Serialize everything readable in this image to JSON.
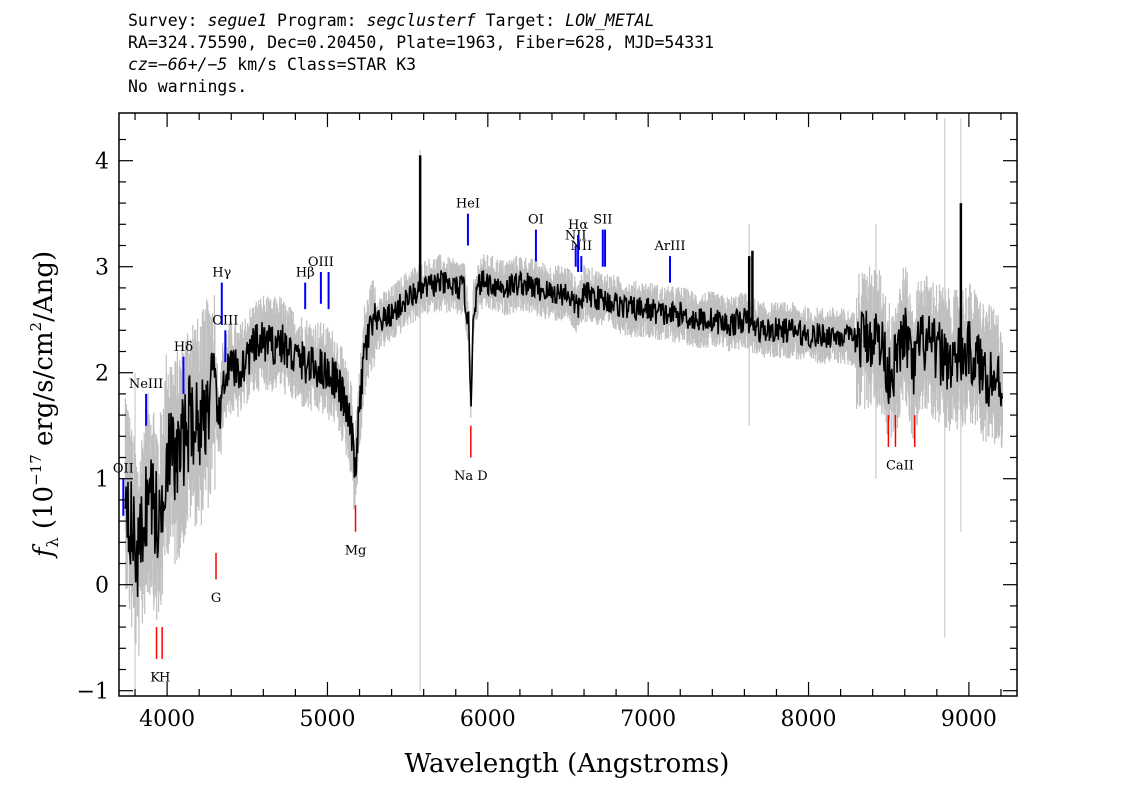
{
  "header": {
    "survey_label": "Survey:",
    "survey": "segue1",
    "program_label": "Program:",
    "program": "segclusterf",
    "target_label": "Target:",
    "target": "LOW_METAL",
    "line2": "RA=324.75590, Dec=0.20450, Plate=1963, Fiber=628, MJD=54331",
    "cz_label": "cz=",
    "cz_value": "−66+/−5",
    "cz_rest": " km/s Class=STAR K3",
    "line4": "No warnings."
  },
  "chart_data": {
    "type": "line",
    "xlabel": "Wavelength (Angstroms)",
    "ylabel_parts": {
      "pre": "f",
      "sub": "λ",
      "mid": " (10",
      "sup1": "−17",
      "mid2": " erg/s/cm",
      "sup2": "2",
      "post": "/Ang)"
    },
    "xlim": [
      3700,
      9300
    ],
    "ylim": [
      -1.05,
      4.45
    ],
    "xticks": [
      4000,
      5000,
      6000,
      7000,
      8000,
      9000
    ],
    "yticks": [
      -1,
      0,
      1,
      2,
      3,
      4
    ],
    "colors": {
      "flux": "#000000",
      "error_band": "#c0c0c0",
      "emission": "#0000ff",
      "absorption": "#ff0000"
    },
    "continuum": [
      [
        3740,
        1.0
      ],
      [
        3780,
        0.5
      ],
      [
        3820,
        0.25
      ],
      [
        3860,
        0.7
      ],
      [
        3900,
        0.9
      ],
      [
        3950,
        0.5
      ],
      [
        4000,
        1.3
      ],
      [
        4050,
        1.15
      ],
      [
        4100,
        1.35
      ],
      [
        4150,
        1.6
      ],
      [
        4200,
        1.5
      ],
      [
        4250,
        1.7
      ],
      [
        4300,
        1.85
      ],
      [
        4330,
        1.5
      ],
      [
        4350,
        1.95
      ],
      [
        4400,
        2.05
      ],
      [
        4450,
        2.0
      ],
      [
        4500,
        2.15
      ],
      [
        4550,
        2.25
      ],
      [
        4600,
        2.3
      ],
      [
        4650,
        2.25
      ],
      [
        4700,
        2.3
      ],
      [
        4750,
        2.2
      ],
      [
        4800,
        2.15
      ],
      [
        4850,
        2.1
      ],
      [
        4900,
        2.05
      ],
      [
        4950,
        2.05
      ],
      [
        5000,
        2.0
      ],
      [
        5050,
        1.95
      ],
      [
        5100,
        1.75
      ],
      [
        5150,
        1.45
      ],
      [
        5170,
        1.05
      ],
      [
        5190,
        1.45
      ],
      [
        5230,
        2.2
      ],
      [
        5280,
        2.45
      ],
      [
        5350,
        2.5
      ],
      [
        5400,
        2.55
      ],
      [
        5500,
        2.7
      ],
      [
        5550,
        2.75
      ],
      [
        5600,
        2.8
      ],
      [
        5700,
        2.85
      ],
      [
        5800,
        2.8
      ],
      [
        5850,
        2.8
      ],
      [
        5880,
        2.45
      ],
      [
        5895,
        1.7
      ],
      [
        5910,
        2.6
      ],
      [
        5950,
        2.85
      ],
      [
        6000,
        2.85
      ],
      [
        6100,
        2.8
      ],
      [
        6200,
        2.85
      ],
      [
        6300,
        2.8
      ],
      [
        6400,
        2.75
      ],
      [
        6500,
        2.75
      ],
      [
        6560,
        2.6
      ],
      [
        6600,
        2.75
      ],
      [
        6700,
        2.7
      ],
      [
        6800,
        2.65
      ],
      [
        6900,
        2.6
      ],
      [
        7000,
        2.6
      ],
      [
        7100,
        2.55
      ],
      [
        7200,
        2.55
      ],
      [
        7300,
        2.5
      ],
      [
        7400,
        2.5
      ],
      [
        7500,
        2.45
      ],
      [
        7600,
        2.5
      ],
      [
        7700,
        2.4
      ],
      [
        7800,
        2.4
      ],
      [
        7900,
        2.4
      ],
      [
        8000,
        2.35
      ],
      [
        8100,
        2.35
      ],
      [
        8200,
        2.35
      ],
      [
        8300,
        2.3
      ],
      [
        8400,
        2.35
      ],
      [
        8450,
        2.3
      ],
      [
        8500,
        2.0
      ],
      [
        8550,
        2.1
      ],
      [
        8600,
        2.4
      ],
      [
        8650,
        2.0
      ],
      [
        8700,
        2.3
      ],
      [
        8800,
        2.2
      ],
      [
        8900,
        2.1
      ],
      [
        9000,
        2.2
      ],
      [
        9100,
        2.0
      ],
      [
        9200,
        1.9
      ]
    ],
    "spikes": [
      [
        5578,
        4.05
      ],
      [
        8950,
        3.6
      ],
      [
        7630,
        3.1
      ],
      [
        7650,
        3.15
      ]
    ],
    "emission_lines": [
      {
        "label": "OII",
        "x": 3727,
        "ytop": 1.0,
        "ybot": 0.65
      },
      {
        "label": "NeIII",
        "x": 3869,
        "ytop": 1.8,
        "ybot": 1.5
      },
      {
        "label": "Hδ",
        "x": 4102,
        "ytop": 2.15,
        "ybot": 1.8
      },
      {
        "label": "Hγ",
        "x": 4341,
        "ytop": 2.85,
        "ybot": 2.45
      },
      {
        "label": "OIII",
        "x": 4363,
        "ytop": 2.4,
        "ybot": 2.1
      },
      {
        "label": "Hβ",
        "x": 4861,
        "ytop": 2.85,
        "ybot": 2.6
      },
      {
        "label": "OIII",
        "x": 4959,
        "ytop": 2.95,
        "ybot": 2.65
      },
      {
        "label": "",
        "x": 5007,
        "ytop": 2.95,
        "ybot": 2.6
      },
      {
        "label": "HeI",
        "x": 5876,
        "ytop": 3.5,
        "ybot": 3.2
      },
      {
        "label": "OI",
        "x": 6300,
        "ytop": 3.35,
        "ybot": 3.05
      },
      {
        "label": "NII",
        "x": 6548,
        "ytop": 3.2,
        "ybot": 3.0
      },
      {
        "label": "Hα",
        "x": 6563,
        "ytop": 3.3,
        "ybot": 2.95
      },
      {
        "label": "NII",
        "x": 6583,
        "ytop": 3.1,
        "ybot": 2.95
      },
      {
        "label": "SII",
        "x": 6717,
        "ytop": 3.35,
        "ybot": 3.0
      },
      {
        "label": "",
        "x": 6731,
        "ytop": 3.35,
        "ybot": 3.0
      },
      {
        "label": "ArIII",
        "x": 7136,
        "ytop": 3.1,
        "ybot": 2.85
      }
    ],
    "absorption_lines": [
      {
        "label": "",
        "x": 3934,
        "ytop": -0.4,
        "ybot": -0.7
      },
      {
        "label": "",
        "x": 3969,
        "ytop": -0.4,
        "ybot": -0.7
      },
      {
        "label": "G",
        "x": 4305,
        "ytop": 0.3,
        "ybot": 0.05
      },
      {
        "label": "Mg",
        "x": 5175,
        "ytop": 0.75,
        "ybot": 0.5
      },
      {
        "label": "",
        "x": 5894,
        "ytop": 1.5,
        "ybot": 1.2
      },
      {
        "label": "",
        "x": 8498,
        "ytop": 1.6,
        "ybot": 1.3
      },
      {
        "label": "",
        "x": 8542,
        "ytop": 1.6,
        "ybot": 1.3
      },
      {
        "label": "",
        "x": 8662,
        "ytop": 1.6,
        "ybot": 1.3
      }
    ],
    "absorption_labels": [
      {
        "text": "K",
        "x": 3925,
        "y": -0.8
      },
      {
        "text": "H",
        "x": 3985,
        "y": -0.8
      },
      {
        "text": "G",
        "x": 4305,
        "y": -0.05
      },
      {
        "text": "Mg",
        "x": 5175,
        "y": 0.4
      },
      {
        "text": "Na D",
        "x": 5894,
        "y": 1.1
      },
      {
        "text": "CaII",
        "x": 8570,
        "y": 1.2
      }
    ]
  }
}
